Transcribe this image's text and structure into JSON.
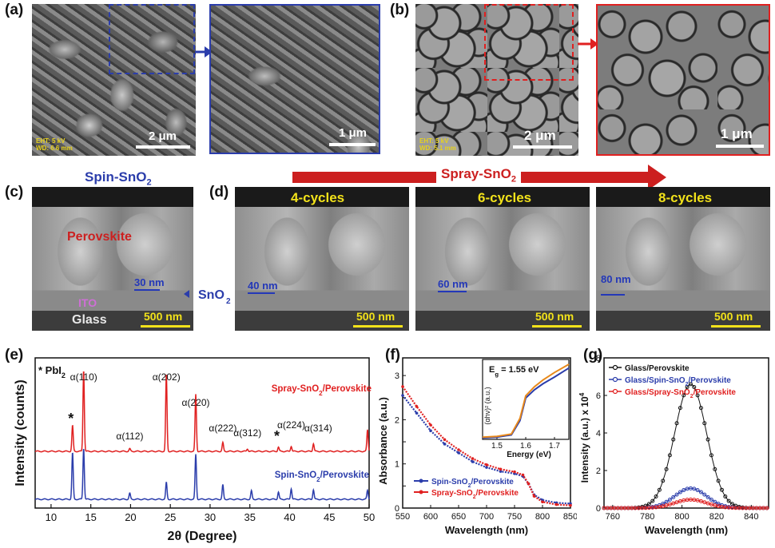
{
  "panels": {
    "a": "(a)",
    "b": "(b)",
    "c": "(c)",
    "d": "(d)",
    "e": "(e)",
    "f": "(f)",
    "g": "(g)"
  },
  "sem_top": {
    "a_scale": "2 μm",
    "a_zoom_scale": "1 μm",
    "a_eht": "EHT: 5 kV",
    "a_wd": "WD: 6.6 mm",
    "b_scale": "2 μm",
    "b_zoom_scale": "1 μm",
    "b_eht": "EHT: 5 kV",
    "b_wd": "WD: 5.1 mm"
  },
  "spin_title": "Spin-SnO",
  "spin_sub": "2",
  "spray_title": "Spray-SnO",
  "spray_sub": "2",
  "cross_section": {
    "perovskite": "Perovskite",
    "ito": "ITO",
    "glass": "Glass",
    "sno2": "SnO",
    "sno2_sub": "2",
    "c_thickness": "30 nm",
    "scale": "500 nm",
    "cycles": [
      {
        "label": "4-cycles",
        "thickness": "40 nm"
      },
      {
        "label": "6-cycles",
        "thickness": "60 nm"
      },
      {
        "label": "8-cycles",
        "thickness": "80 nm"
      }
    ]
  },
  "colors": {
    "spin": "#2b3dab",
    "spray": "#e02020",
    "black": "#111111",
    "arrow": "#cc1f1f"
  },
  "chart_data": [
    {
      "type": "line",
      "panel": "e",
      "xlabel": "2θ (Degree)",
      "ylabel": "Intensity (counts)",
      "xlim": [
        8,
        50
      ],
      "xticks": [
        10,
        15,
        20,
        25,
        30,
        35,
        40,
        45,
        50
      ],
      "legend_note": "* PbI",
      "legend_note_sub": "2",
      "series": [
        {
          "name": "Spray-SnO2/Perovskite",
          "label": "Spray-SnO",
          "label_sub": "2",
          "label_tail": "/Perovskite",
          "peaks": [
            [
              12.7,
              0.3
            ],
            [
              14.1,
              0.95
            ],
            [
              19.9,
              0.03
            ],
            [
              24.5,
              0.9
            ],
            [
              28.2,
              0.66
            ],
            [
              31.6,
              0.1
            ],
            [
              34.7,
              0.03
            ],
            [
              38.6,
              0.05
            ],
            [
              40.2,
              0.06
            ],
            [
              43.0,
              0.09
            ],
            [
              49.8,
              0.25
            ]
          ]
        },
        {
          "name": "Spin-SnO2/Perovskite",
          "label": "Spin-SnO",
          "label_sub": "2",
          "label_tail": "/Perovskite",
          "peaks": [
            [
              12.7,
              0.78
            ],
            [
              14.1,
              0.86
            ],
            [
              19.9,
              0.1
            ],
            [
              24.5,
              0.28
            ],
            [
              28.2,
              0.75
            ],
            [
              31.6,
              0.24
            ],
            [
              35.2,
              0.14
            ],
            [
              38.6,
              0.12
            ],
            [
              40.2,
              0.18
            ],
            [
              43.0,
              0.16
            ],
            [
              49.8,
              0.15
            ]
          ]
        }
      ],
      "annotations": [
        {
          "text": "α(110)",
          "x": 14.1
        },
        {
          "text": "α(202)",
          "x": 24.5
        },
        {
          "text": "α(220)",
          "x": 28.2
        },
        {
          "text": "α(112)",
          "x": 19.9
        },
        {
          "text": "α(222)",
          "x": 31.6
        },
        {
          "text": "α(312)",
          "x": 34.7
        },
        {
          "text": "α(224)",
          "x": 40.2
        },
        {
          "text": "α(314)",
          "x": 43.6
        },
        {
          "text": "*",
          "x": 12.7
        },
        {
          "text": "*",
          "x": 38.6
        }
      ]
    },
    {
      "type": "line",
      "panel": "f",
      "xlabel": "Wavelength (nm)",
      "ylabel": "Absorbance (a.u.)",
      "xlim": [
        550,
        850
      ],
      "ylim": [
        0,
        3.4
      ],
      "xticks": [
        550,
        600,
        650,
        700,
        750,
        800,
        850
      ],
      "yticks": [
        0,
        0.5,
        1,
        1.5,
        2,
        2.5,
        3
      ],
      "ytick_labels": [
        "0",
        "",
        "1",
        "",
        "2",
        "",
        "3"
      ],
      "series": [
        {
          "name": "Spin-SnO2/Perovskite",
          "label": "Spin-SnO",
          "label_sub": "2",
          "label_tail": "/Perovskite",
          "x": [
            550,
            575,
            600,
            625,
            650,
            675,
            700,
            725,
            750,
            765,
            775,
            785,
            800,
            825,
            850
          ],
          "y": [
            2.55,
            2.15,
            1.75,
            1.45,
            1.25,
            1.05,
            0.92,
            0.83,
            0.78,
            0.72,
            0.55,
            0.3,
            0.18,
            0.12,
            0.1
          ]
        },
        {
          "name": "Spray-SnO2/Perovskite",
          "label": "Spray-SnO",
          "label_sub": "2",
          "label_tail": "/Perovskite",
          "x": [
            550,
            575,
            600,
            625,
            650,
            675,
            700,
            725,
            750,
            765,
            775,
            785,
            800,
            825,
            850
          ],
          "y": [
            2.75,
            2.3,
            1.88,
            1.55,
            1.32,
            1.12,
            0.98,
            0.88,
            0.82,
            0.75,
            0.55,
            0.27,
            0.14,
            0.08,
            0.06
          ]
        }
      ],
      "inset": {
        "label": "E",
        "label_sub": "g",
        "label_tail": " = 1.55 eV",
        "ylabel": "(αhν)² (a.u.)",
        "xlabel": "Energy (eV)",
        "xlim": [
          1.45,
          1.75
        ],
        "xticks": [
          1.5,
          1.6,
          1.7
        ],
        "series": [
          {
            "name": "Spin-SnO2/Perovskite",
            "x": [
              1.45,
              1.5,
              1.55,
              1.58,
              1.6,
              1.63,
              1.66,
              1.7,
              1.75
            ],
            "y": [
              0.02,
              0.03,
              0.06,
              0.25,
              0.55,
              0.66,
              0.74,
              0.83,
              0.95
            ]
          },
          {
            "name": "Spray-SnO2/Perovskite",
            "x": [
              1.45,
              1.5,
              1.55,
              1.58,
              1.6,
              1.63,
              1.66,
              1.7,
              1.75
            ],
            "y": [
              0.03,
              0.04,
              0.07,
              0.28,
              0.58,
              0.7,
              0.79,
              0.89,
              1.0
            ]
          }
        ]
      }
    },
    {
      "type": "line",
      "panel": "g",
      "xlabel": "Wavelength (nm)",
      "ylabel": "Intensity (a.u.) x 10",
      "ylabel_sup": "4",
      "xlim": [
        755,
        850
      ],
      "ylim": [
        0,
        8
      ],
      "xticks": [
        760,
        780,
        800,
        820,
        840
      ],
      "yticks": [
        0,
        2,
        4,
        6,
        8
      ],
      "legend_position": "top",
      "series": [
        {
          "name": "Glass/Perovskite",
          "label": "Glass/Perovskite",
          "color": "#111111",
          "peak": 6.6,
          "center": 805,
          "sigma": 13
        },
        {
          "name": "Glass/Spin-SnO2/Perovskite",
          "label": "Glass/Spin-SnO",
          "label_sub": "2",
          "label_tail": "/Perovskite",
          "color": "#2b3dab",
          "peak": 1.05,
          "center": 805,
          "sigma": 13
        },
        {
          "name": "Glass/Spray-SnO2/Perovskite",
          "label": "Glass/Spray-SnO",
          "label_sub": "2",
          "label_tail": "/Perovskite",
          "color": "#e02020",
          "peak": 0.45,
          "center": 805,
          "sigma": 13
        }
      ]
    }
  ]
}
